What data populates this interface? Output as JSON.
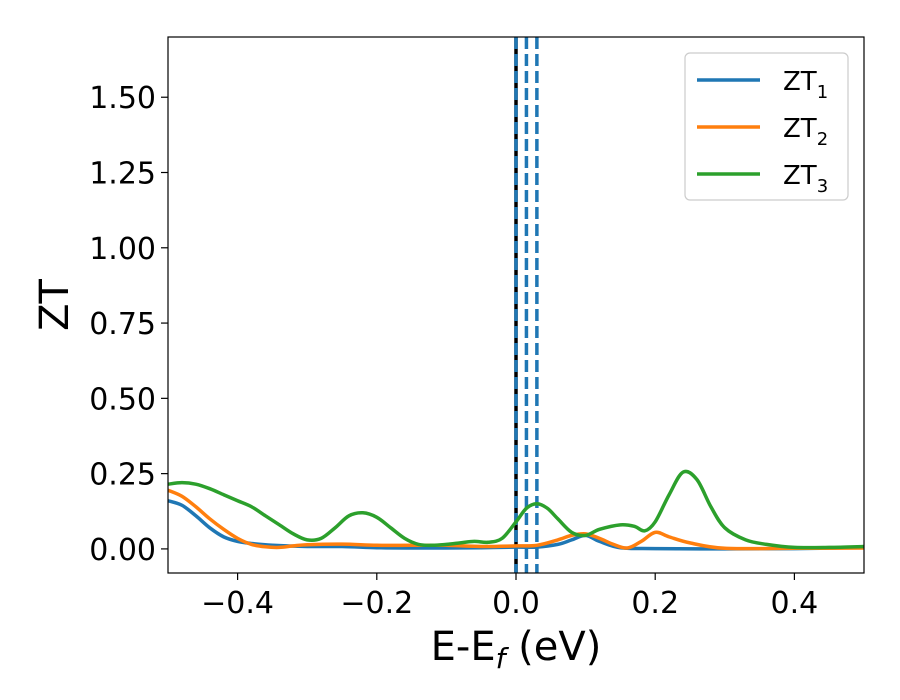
{
  "chart_data": {
    "type": "line",
    "title": "",
    "xlabel": "E-E",
    "xlabel_subscript": "f",
    "xlabel_unit": " (eV)",
    "ylabel": "ZT",
    "xlim": [
      -0.5,
      0.5
    ],
    "ylim": [
      -0.08,
      1.7
    ],
    "xticks": [
      -0.4,
      -0.2,
      0.0,
      0.2,
      0.4
    ],
    "xtick_labels": [
      "−0.4",
      "−0.2",
      "0.0",
      "0.2",
      "0.4"
    ],
    "yticks": [
      0.0,
      0.25,
      0.5,
      0.75,
      1.0,
      1.25,
      1.5
    ],
    "ytick_labels": [
      "0.00",
      "0.25",
      "0.50",
      "0.75",
      "1.00",
      "1.25",
      "1.50"
    ],
    "grid": false,
    "legend_position": "top-right",
    "vertical_lines": [
      {
        "x": 0.0,
        "style": "solid",
        "color": "#000000"
      },
      {
        "x": 0.0,
        "style": "dashed",
        "color": "#1f77b4"
      },
      {
        "x": 0.015,
        "style": "dashed",
        "color": "#1f77b4"
      },
      {
        "x": 0.03,
        "style": "dashed",
        "color": "#1f77b4"
      }
    ],
    "series": [
      {
        "name": "ZT",
        "subscript": "1",
        "color": "#1f77b4",
        "x": [
          -0.5,
          -0.48,
          -0.46,
          -0.44,
          -0.42,
          -0.4,
          -0.38,
          -0.35,
          -0.3,
          -0.25,
          -0.2,
          -0.15,
          -0.1,
          -0.05,
          0.0,
          0.03,
          0.06,
          0.08,
          0.1,
          0.12,
          0.15,
          0.2,
          0.3,
          0.4,
          0.5
        ],
        "y": [
          0.16,
          0.145,
          0.11,
          0.07,
          0.04,
          0.025,
          0.018,
          0.012,
          0.008,
          0.008,
          0.004,
          0.003,
          0.003,
          0.004,
          0.006,
          0.006,
          0.015,
          0.03,
          0.045,
          0.025,
          0.004,
          0.001,
          0.0,
          0.001,
          0.005
        ]
      },
      {
        "name": "ZT",
        "subscript": "2",
        "color": "#ff7f0e",
        "x": [
          -0.5,
          -0.48,
          -0.46,
          -0.44,
          -0.42,
          -0.4,
          -0.38,
          -0.36,
          -0.34,
          -0.32,
          -0.3,
          -0.25,
          -0.2,
          -0.15,
          -0.1,
          -0.05,
          0.0,
          0.03,
          0.06,
          0.08,
          0.1,
          0.12,
          0.14,
          0.16,
          0.18,
          0.2,
          0.22,
          0.25,
          0.3,
          0.4,
          0.5
        ],
        "y": [
          0.195,
          0.175,
          0.14,
          0.1,
          0.065,
          0.035,
          0.015,
          0.007,
          0.005,
          0.01,
          0.014,
          0.016,
          0.012,
          0.012,
          0.012,
          0.008,
          0.01,
          0.012,
          0.03,
          0.045,
          0.05,
          0.035,
          0.015,
          0.003,
          0.025,
          0.055,
          0.04,
          0.02,
          0.002,
          0.002,
          0.003
        ]
      },
      {
        "name": "ZT",
        "subscript": "3",
        "color": "#2ca02c",
        "x": [
          -0.5,
          -0.48,
          -0.46,
          -0.44,
          -0.42,
          -0.4,
          -0.38,
          -0.36,
          -0.34,
          -0.32,
          -0.3,
          -0.28,
          -0.26,
          -0.24,
          -0.22,
          -0.2,
          -0.18,
          -0.16,
          -0.14,
          -0.12,
          -0.1,
          -0.08,
          -0.06,
          -0.04,
          -0.02,
          0.0,
          0.015,
          0.03,
          0.045,
          0.06,
          0.08,
          0.1,
          0.12,
          0.15,
          0.17,
          0.185,
          0.2,
          0.22,
          0.24,
          0.26,
          0.28,
          0.3,
          0.33,
          0.36,
          0.4,
          0.45,
          0.5
        ],
        "y": [
          0.215,
          0.22,
          0.215,
          0.2,
          0.18,
          0.16,
          0.14,
          0.11,
          0.08,
          0.05,
          0.03,
          0.035,
          0.07,
          0.11,
          0.12,
          0.105,
          0.07,
          0.035,
          0.015,
          0.012,
          0.015,
          0.02,
          0.025,
          0.022,
          0.035,
          0.09,
          0.135,
          0.15,
          0.135,
          0.1,
          0.055,
          0.045,
          0.065,
          0.08,
          0.075,
          0.06,
          0.09,
          0.18,
          0.255,
          0.23,
          0.14,
          0.07,
          0.03,
          0.015,
          0.005,
          0.005,
          0.008
        ]
      }
    ]
  }
}
